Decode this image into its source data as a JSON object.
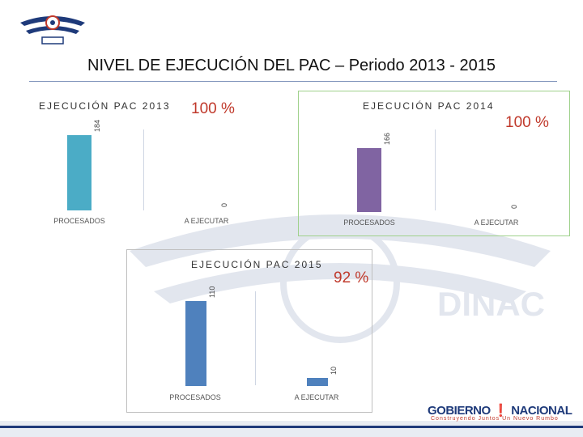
{
  "page": {
    "title": "NIVEL DE EJECUCIÓN DEL PAC – Periodo 2013 - 2015"
  },
  "watermark": {
    "text": "DINAC"
  },
  "footer": {
    "brand_left": "GOBIERNO",
    "brand_right": "NACIONAL",
    "tagline": "Construyendo Juntos Un Nuevo Rumbo"
  },
  "colors": {
    "y2013": "#4BACC6",
    "y2014": "#8064A2",
    "y2015": "#4F81BD",
    "accent": "#C0392B"
  },
  "chart_data": [
    {
      "type": "bar",
      "title": "EJECUCIÓN PAC 2013",
      "percentage": "100 %",
      "categories": [
        "PROCESADOS",
        "A EJECUTAR"
      ],
      "values": [
        184,
        0
      ],
      "ylim": [
        0,
        184
      ]
    },
    {
      "type": "bar",
      "title": "EJECUCIÓN PAC 2014",
      "percentage": "100 %",
      "categories": [
        "PROCESADOS",
        "A EJECUTAR"
      ],
      "values": [
        166,
        0
      ],
      "ylim": [
        0,
        166
      ]
    },
    {
      "type": "bar",
      "title": "EJECUCIÓN PAC 2015",
      "percentage": "92 %",
      "categories": [
        "PROCESADOS",
        "A EJECUTAR"
      ],
      "values": [
        110,
        10
      ],
      "ylim": [
        0,
        110
      ]
    }
  ]
}
